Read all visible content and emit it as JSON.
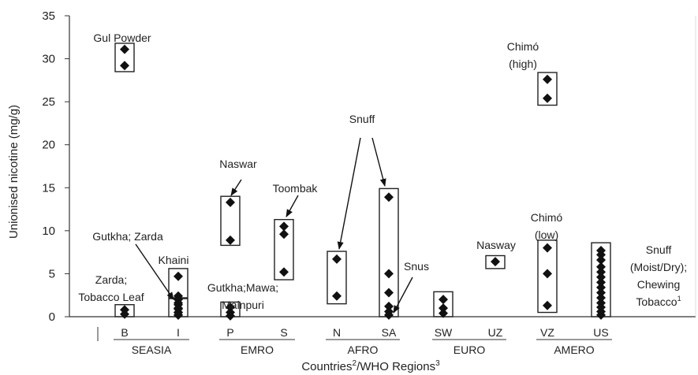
{
  "chart_data": {
    "type": "scatter",
    "xlabel": "Countries",
    "xlabel_sup1": "2",
    "xlabel_mid": "/WHO Regions",
    "xlabel_sup2": "3",
    "ylabel": "Unionised nicotine (mg/g)",
    "ylim": [
      0,
      35
    ],
    "yticks": [
      0,
      5,
      10,
      15,
      20,
      25,
      30,
      35
    ],
    "grid": false,
    "marker": "diamond",
    "countries": [
      "B",
      "I",
      "P",
      "S",
      "N",
      "SA",
      "SW",
      "UZ",
      "VZ",
      "US"
    ],
    "regions": [
      {
        "name": "SEASIA",
        "countries": [
          "B",
          "I"
        ]
      },
      {
        "name": "EMRO",
        "countries": [
          "P",
          "S"
        ]
      },
      {
        "name": "AFRO",
        "countries": [
          "N",
          "SA"
        ]
      },
      {
        "name": "EURO",
        "countries": [
          "SW",
          "UZ"
        ]
      },
      {
        "name": "AMERO",
        "countries": [
          "VZ",
          "US"
        ]
      }
    ],
    "groups": [
      {
        "country": "B",
        "values": [
          31.1,
          29.2
        ],
        "box": [
          28.5,
          31.8
        ]
      },
      {
        "country": "B",
        "values": [
          0.8,
          0.3
        ],
        "box": [
          0,
          1.4
        ]
      },
      {
        "country": "I",
        "values": [
          4.7,
          2.4,
          1.6,
          1.0,
          0.5,
          0.2
        ],
        "box": [
          2.2,
          5.6
        ]
      },
      {
        "country": "I",
        "values": [
          2.0,
          1.4,
          0.9,
          0.5,
          0.2
        ],
        "box": [
          0,
          2.1
        ]
      },
      {
        "country": "P",
        "values": [
          13.3,
          8.9
        ],
        "box": [
          8.3,
          14.0
        ]
      },
      {
        "country": "P",
        "values": [
          1.1,
          0.5,
          0.1
        ],
        "box": [
          0,
          1.7
        ]
      },
      {
        "country": "S",
        "values": [
          10.5,
          9.6,
          5.2
        ],
        "box": [
          4.3,
          11.3
        ]
      },
      {
        "country": "N",
        "values": [
          6.7,
          2.4
        ],
        "box": [
          1.5,
          7.6
        ]
      },
      {
        "country": "SA",
        "values": [
          13.9,
          5.0,
          2.8,
          1.2,
          0.6,
          0.2
        ],
        "box": [
          0,
          14.9
        ]
      },
      {
        "country": "SW",
        "values": [
          2.0,
          1.0,
          0.4
        ],
        "box": [
          0,
          2.9
        ]
      },
      {
        "country": "UZ",
        "values": [
          6.4
        ],
        "box": [
          5.6,
          7.1
        ]
      },
      {
        "country": "VZ",
        "values": [
          27.6,
          25.4
        ],
        "box": [
          24.6,
          28.4
        ]
      },
      {
        "country": "VZ",
        "values": [
          8.0,
          5.0,
          1.3
        ],
        "box": [
          0.5,
          8.9
        ]
      },
      {
        "country": "US",
        "values": [
          7.7,
          7.2,
          6.6,
          5.8,
          5.2,
          4.6,
          4.0,
          3.4,
          2.8,
          2.2,
          1.6,
          1.1,
          0.6,
          0.2
        ],
        "box": [
          0,
          8.6
        ]
      }
    ],
    "annotations": [
      {
        "id": "gul",
        "lines": [
          "Gul Powder"
        ]
      },
      {
        "id": "chimo-high",
        "lines": [
          "Chimó",
          "(high)"
        ]
      },
      {
        "id": "naswar",
        "lines": [
          "Naswar"
        ]
      },
      {
        "id": "toombak",
        "lines": [
          "Toombak"
        ]
      },
      {
        "id": "snuff",
        "lines": [
          "Snuff"
        ]
      },
      {
        "id": "gutkha-zarda",
        "lines": [
          "Gutkha; Zarda"
        ]
      },
      {
        "id": "khaini",
        "lines": [
          "Khaini"
        ]
      },
      {
        "id": "zarda-tobacco",
        "lines": [
          "Zarda;",
          "Tobacco Leaf"
        ]
      },
      {
        "id": "gutkha-mawa",
        "lines": [
          "Gutkha;Mawa;",
          "Mainpuri"
        ]
      },
      {
        "id": "snus",
        "lines": [
          "Snus"
        ]
      },
      {
        "id": "nasway",
        "lines": [
          "Nasway"
        ]
      },
      {
        "id": "chimo-low",
        "lines": [
          "Chimó",
          "(low)"
        ]
      },
      {
        "id": "snuff-moist",
        "lines": [
          "Snuff",
          "(Moist/Dry);",
          "Chewing",
          "Tobacco"
        ],
        "sup": "1"
      }
    ]
  }
}
